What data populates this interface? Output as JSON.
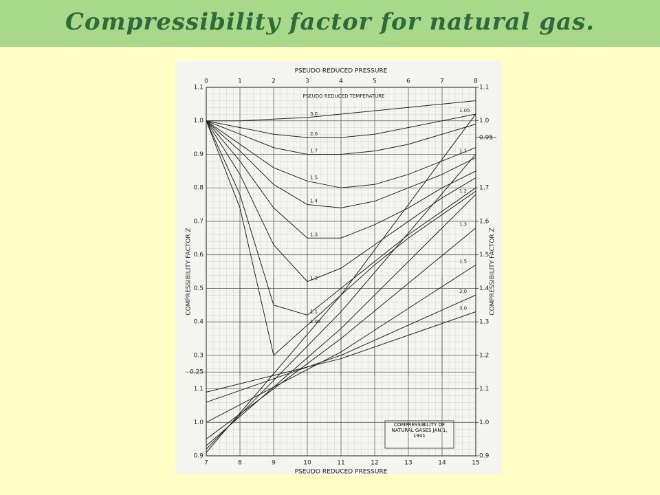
{
  "title": "Compressibility factor for natural gas.",
  "chart_data": [
    {
      "type": "line",
      "x_label": "PSEUDO REDUCED PRESSURE",
      "y_label": "COMPRESSIBILITY FACTOR Z",
      "legend_title": "PSEUDO REDUCED TEMPERATURE",
      "color": "#222222",
      "x": [
        0,
        1,
        2,
        3,
        4,
        5,
        6,
        7,
        8
      ],
      "xlim": [
        0,
        8
      ],
      "xticks": [
        0,
        1,
        2,
        3,
        4,
        5,
        6,
        7,
        8
      ],
      "ylim": [
        0,
        1.1
      ],
      "yticks": [
        0.25,
        0.3,
        0.4,
        0.5,
        0.6,
        0.7,
        0.8,
        0.9,
        {
          "value": 1,
          "label": "1.0"
        },
        1.1
      ],
      "y2lim": [
        0,
        1.1
      ],
      "y2ticks": [
        0.95,
        {
          "value": 1,
          "label": "1.0"
        },
        1.1
      ],
      "grid": true,
      "series": [
        {
          "name": "3.0",
          "values": [
            1,
            1.0,
            1.005,
            1.01,
            1.02,
            1.03,
            1.04,
            1.05,
            1.06
          ]
        },
        {
          "name": "2.0",
          "values": [
            1,
            0.98,
            0.96,
            0.95,
            0.95,
            0.96,
            0.98,
            1.0,
            1.02
          ]
        },
        {
          "name": "1.7",
          "values": [
            1,
            0.96,
            0.92,
            0.9,
            0.9,
            0.91,
            0.93,
            0.96,
            0.99
          ]
        },
        {
          "name": "1.5",
          "values": [
            1,
            0.93,
            0.86,
            0.82,
            0.8,
            0.81,
            0.84,
            0.88,
            0.92
          ]
        },
        {
          "name": "1.4",
          "values": [
            1,
            0.91,
            0.81,
            0.75,
            0.74,
            0.76,
            0.8,
            0.84,
            0.89
          ]
        },
        {
          "name": "1.3",
          "values": [
            1,
            0.88,
            0.74,
            0.65,
            0.65,
            0.69,
            0.74,
            0.8,
            0.85
          ]
        },
        {
          "name": "1.2",
          "values": [
            1,
            0.84,
            0.63,
            0.52,
            0.56,
            0.63,
            0.7,
            0.77,
            0.83
          ]
        },
        {
          "name": "1.1",
          "values": [
            1,
            0.78,
            0.45,
            0.42,
            0.5,
            0.58,
            0.66,
            0.73,
            0.8
          ]
        },
        {
          "name": "1.05",
          "values": [
            1,
            0.74,
            0.3,
            0.39,
            0.48,
            0.57,
            0.65,
            0.72,
            0.79
          ]
        }
      ]
    },
    {
      "type": "line",
      "x_label": "PSEUDO REDUCED PRESSURE",
      "y_label": "COMPRESSIBILITY FACTOR Z",
      "annotation": "COMPRESSIBILITY OF NATURAL GASES JAN 1, 1941",
      "color": "#222222",
      "x": [
        7,
        11,
        15
      ],
      "xlim": [
        7,
        15
      ],
      "xticks": [
        7,
        8,
        9,
        10,
        11,
        12,
        13,
        14,
        15
      ],
      "ylim": [
        0.9,
        2.0
      ],
      "yticks": [
        0.9,
        {
          "value": 1,
          "label": "1.0"
        },
        1.1
      ],
      "y2lim": [
        0.9,
        2.0
      ],
      "y2ticks": [
        0.9,
        {
          "value": 1,
          "label": "1.0"
        },
        1.1,
        1.2,
        1.3,
        1.4,
        1.5,
        1.6,
        1.7
      ],
      "series": [
        {
          "name": "1.05",
          "values": [
            0.91,
            1.38,
            1.92
          ]
        },
        {
          "name": "1.1",
          "values": [
            0.92,
            1.33,
            1.8
          ]
        },
        {
          "name": "1.2",
          "values": [
            0.93,
            1.28,
            1.68
          ]
        },
        {
          "name": "1.3",
          "values": [
            0.95,
            1.25,
            1.58
          ]
        },
        {
          "name": "1.5",
          "values": [
            1.0,
            1.21,
            1.47
          ]
        },
        {
          "name": "2.0",
          "values": [
            1.06,
            1.2,
            1.38
          ]
        },
        {
          "name": "3.0",
          "values": [
            1.09,
            1.19,
            1.33
          ]
        }
      ]
    }
  ]
}
